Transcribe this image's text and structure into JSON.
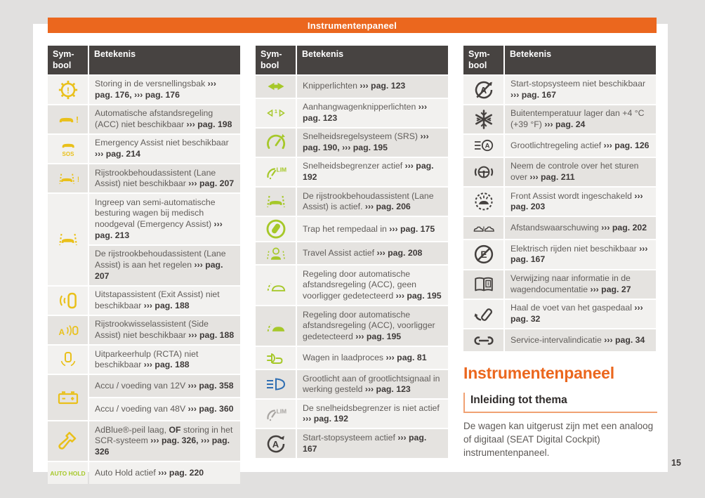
{
  "colors": {
    "yellow": "#e9c01a",
    "green": "#a6c829",
    "blue": "#2f6eb2",
    "gray": "#a8a5a2",
    "dark": "#44403e",
    "orange": "#eb671e",
    "header_bg": "#474341",
    "row_light": "#f2f1ef",
    "row_dark": "#e5e3e0",
    "text": "#615d5a",
    "text_bold": "#3e3a39",
    "page_background": "#e1e0df"
  },
  "banner": {
    "title": "Instrumentenpaneel"
  },
  "page_number": "15",
  "table_headers": {
    "symbol": "Sym-\nbool",
    "meaning": "Betekenis"
  },
  "tables": [
    {
      "first_shade": "light",
      "rows": [
        {
          "icon": "gearbox-warning-icon",
          "color": "yellow",
          "segments": [
            {
              "t": "Storing in de versnellingsbak "
            },
            {
              "t": "››› pag. 176,",
              "b": true
            },
            {
              "t": " "
            },
            {
              "t": "››› pag. 176",
              "b": true
            }
          ]
        },
        {
          "icon": "acc-unavailable-icon",
          "color": "yellow",
          "segments": [
            {
              "t": "Automatische afstandsregeling (ACC) niet beschikbaar "
            },
            {
              "t": "››› pag. 198",
              "b": true
            }
          ]
        },
        {
          "icon": "emergency-assist-icon",
          "color": "yellow",
          "icon_label_sub": "SOS",
          "segments": [
            {
              "t": "Emergency Assist niet beschikbaar "
            },
            {
              "t": "››› pag. 214",
              "b": true
            }
          ]
        },
        {
          "icon": "lane-assist-warning-icon",
          "color": "yellow",
          "segments": [
            {
              "t": "Rijstrookbehoudassistent (Lane Assist) niet beschikbaar "
            },
            {
              "t": "››› pag. 207",
              "b": true
            }
          ]
        },
        {
          "icon": "lane-keep-intervention-icon",
          "color": "yellow",
          "span": 2,
          "segments": [
            {
              "t": "Ingreep van semi-automatische besturing wagen bij medisch noodgeval (Emergency Assist) "
            },
            {
              "t": "››› pag. 213",
              "b": true
            }
          ]
        },
        {
          "icon": null,
          "segments": [
            {
              "t": "De rijstrookbehoudassistent (Lane Assist) is aan het regelen "
            },
            {
              "t": "››› pag. 207",
              "b": true
            }
          ]
        },
        {
          "icon": "exit-assist-icon",
          "color": "yellow",
          "segments": [
            {
              "t": "Uitstapassistent (Exit Assist) niet beschikbaar "
            },
            {
              "t": "››› pag. 188",
              "b": true
            }
          ]
        },
        {
          "icon": "side-assist-icon",
          "color": "yellow",
          "segments": [
            {
              "t": "Rijstrookwisselassistent (Side Assist) niet beschikbaar "
            },
            {
              "t": "››› pag. 188",
              "b": true
            }
          ]
        },
        {
          "icon": "rcta-icon",
          "color": "yellow",
          "segments": [
            {
              "t": "Uitparkeerhulp (RCTA) niet beschikbaar "
            },
            {
              "t": "››› pag. 188",
              "b": true
            }
          ]
        },
        {
          "icon": "battery-icon",
          "color": "yellow",
          "span": 2,
          "segments": [
            {
              "t": "Accu / voeding van 12V "
            },
            {
              "t": "››› pag. 358",
              "b": true
            }
          ]
        },
        {
          "icon": null,
          "segments": [
            {
              "t": "Accu / voeding van 48V "
            },
            {
              "t": "››› pag. 360",
              "b": true
            }
          ]
        },
        {
          "icon": "adblue-icon",
          "color": "yellow",
          "segments": [
            {
              "t": "AdBlue®-peil laag, "
            },
            {
              "t": "OF",
              "b": true
            },
            {
              "t": " storing in het SCR-systeem "
            },
            {
              "t": "››› pag. 326,",
              "b": true
            },
            {
              "t": " "
            },
            {
              "t": "››› pag. 326",
              "b": true
            }
          ]
        },
        {
          "icon": "auto-hold-label",
          "color": "green",
          "icon_label": "AUTO HOLD",
          "segments": [
            {
              "t": "Auto Hold actief "
            },
            {
              "t": "››› pag. 220",
              "b": true
            }
          ]
        }
      ]
    },
    {
      "first_shade": "dark",
      "rows": [
        {
          "icon": "turn-signals-icon",
          "color": "green",
          "segments": [
            {
              "t": "Knipperlichten "
            },
            {
              "t": "››› pag. 123",
              "b": true
            }
          ]
        },
        {
          "icon": "trailer-turn-signals-icon",
          "color": "green",
          "segments": [
            {
              "t": "Aanhangwagenknipperlichten "
            },
            {
              "t": "››› pag. 123",
              "b": true
            }
          ]
        },
        {
          "icon": "cruise-control-icon",
          "color": "green",
          "segments": [
            {
              "t": "Snelheidsregelsysteem (SRS) "
            },
            {
              "t": "››› pag. 190,",
              "b": true
            },
            {
              "t": " "
            },
            {
              "t": "››› pag. 195",
              "b": true
            }
          ]
        },
        {
          "icon": "speed-limiter-active-icon",
          "color": "green",
          "segments": [
            {
              "t": "Snelheidsbegrenzer actief "
            },
            {
              "t": "››› pag. 192",
              "b": true
            }
          ]
        },
        {
          "icon": "lane-assist-active-icon",
          "color": "green",
          "segments": [
            {
              "t": "De rijstrookbehoudassistent (Lane Assist) is actief. "
            },
            {
              "t": "››› pag. 206",
              "b": true
            }
          ]
        },
        {
          "icon": "brake-pedal-icon",
          "color": "green",
          "segments": [
            {
              "t": "Trap het rempedaal in "
            },
            {
              "t": "››› pag. 175",
              "b": true
            }
          ]
        },
        {
          "icon": "travel-assist-icon",
          "color": "green",
          "segments": [
            {
              "t": "Travel Assist actief "
            },
            {
              "t": "››› pag. 208",
              "b": true
            }
          ]
        },
        {
          "icon": "acc-no-target-icon",
          "color": "green",
          "segments": [
            {
              "t": "Regeling door automatische afstandsregeling (ACC), geen voorligger gedetecteerd "
            },
            {
              "t": "››› pag. 195",
              "b": true
            }
          ]
        },
        {
          "icon": "acc-target-icon",
          "color": "green",
          "segments": [
            {
              "t": "Regeling door automatische afstandsregeling (ACC), voorligger gedetecteerd "
            },
            {
              "t": "››› pag. 195",
              "b": true
            }
          ]
        },
        {
          "icon": "charging-icon",
          "color": "green",
          "segments": [
            {
              "t": "Wagen in laadproces "
            },
            {
              "t": "››› pag. 81",
              "b": true
            }
          ]
        },
        {
          "icon": "high-beam-icon",
          "color": "blue",
          "segments": [
            {
              "t": "Grootlicht aan of grootlichtsignaal in werking gesteld "
            },
            {
              "t": "››› pag. 123",
              "b": true
            }
          ]
        },
        {
          "icon": "speed-limiter-inactive-icon",
          "color": "gray",
          "segments": [
            {
              "t": "De snelheidsbegrenzer is niet actief "
            },
            {
              "t": "››› pag. 192",
              "b": true
            }
          ]
        },
        {
          "icon": "start-stop-active-icon",
          "color": "dark",
          "segments": [
            {
              "t": "Start-stopsysteem actief "
            },
            {
              "t": "››› pag. 167",
              "b": true
            }
          ]
        }
      ]
    },
    {
      "first_shade": "light",
      "rows": [
        {
          "icon": "start-stop-unavailable-icon",
          "color": "dark",
          "segments": [
            {
              "t": "Start-stopsysteem niet beschikbaar "
            },
            {
              "t": "››› pag. 167",
              "b": true
            }
          ]
        },
        {
          "icon": "low-temperature-icon",
          "color": "dark",
          "segments": [
            {
              "t": "Buitentemperatuur lager dan +4 °C (+39 °F) "
            },
            {
              "t": "››› pag. 24",
              "b": true
            }
          ]
        },
        {
          "icon": "auto-high-beam-icon",
          "color": "dark",
          "segments": [
            {
              "t": "Grootlichtregeling actief "
            },
            {
              "t": "››› pag. 126",
              "b": true
            }
          ]
        },
        {
          "icon": "steering-takeover-icon",
          "color": "dark",
          "segments": [
            {
              "t": "Neem de controle over het sturen over "
            },
            {
              "t": "››› pag. 211",
              "b": true
            }
          ]
        },
        {
          "icon": "front-assist-icon",
          "color": "dark",
          "segments": [
            {
              "t": "Front Assist wordt ingeschakeld "
            },
            {
              "t": "››› pag. 203",
              "b": true
            }
          ]
        },
        {
          "icon": "distance-warning-icon",
          "color": "dark",
          "segments": [
            {
              "t": "Afstandswaarschuwing "
            },
            {
              "t": "››› pag. 202",
              "b": true
            }
          ]
        },
        {
          "icon": "e-mode-unavailable-icon",
          "color": "dark",
          "segments": [
            {
              "t": "Elektrisch rijden niet beschikbaar "
            },
            {
              "t": "››› pag. 167",
              "b": true
            }
          ]
        },
        {
          "icon": "documentation-icon",
          "color": "dark",
          "segments": [
            {
              "t": "Verwijzing naar informatie in de wagendocumentatie "
            },
            {
              "t": "››› pag. 27",
              "b": true
            }
          ]
        },
        {
          "icon": "lift-foot-icon",
          "color": "dark",
          "segments": [
            {
              "t": "Haal de voet van het gaspedaal "
            },
            {
              "t": "››› pag. 32",
              "b": true
            }
          ]
        },
        {
          "icon": "service-interval-icon",
          "color": "dark",
          "segments": [
            {
              "t": "Service-intervalindicatie "
            },
            {
              "t": "››› pag. 34",
              "b": true
            }
          ]
        }
      ]
    }
  ],
  "section": {
    "title": "Instrumentenpaneel",
    "subtitle": "Inleiding tot thema",
    "body": "De wagen kan uitgerust zijn met een analoog of digitaal (SEAT Digital Cockpit) instrumentenpaneel."
  }
}
